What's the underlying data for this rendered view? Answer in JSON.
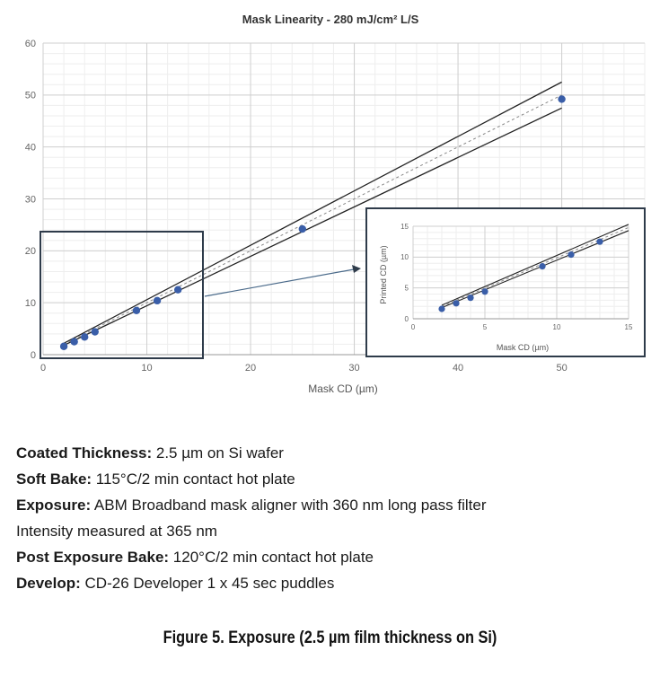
{
  "chart_data": [
    {
      "type": "scatter",
      "title": "Mask Linearity - 280 mJ/cm² L/S",
      "xlabel": "Mask CD (µm)",
      "ylabel": "",
      "xlim": [
        0,
        58
      ],
      "ylim": [
        0,
        60
      ],
      "xticks": [
        0,
        10,
        20,
        30,
        40,
        50
      ],
      "yticks": [
        0,
        10,
        20,
        30,
        40,
        50,
        60
      ],
      "grid": true,
      "x": [
        2,
        3,
        4,
        5,
        9,
        11,
        13,
        25,
        50
      ],
      "y": [
        1.6,
        2.5,
        3.4,
        4.4,
        8.5,
        10.4,
        12.5,
        24.2,
        49.2
      ],
      "reference_lines": [
        {
          "style": "solid",
          "x": [
            2,
            50
          ],
          "y": [
            2.2,
            52.5
          ]
        },
        {
          "style": "solid",
          "x": [
            2,
            50
          ],
          "y": [
            1.8,
            47.5
          ]
        },
        {
          "style": "dashed",
          "x": [
            2,
            50
          ],
          "y": [
            2.0,
            50.0
          ]
        }
      ],
      "point_color": "#3a5ea8",
      "line_color": "#222222"
    },
    {
      "type": "scatter",
      "title": "",
      "xlabel": "Mask CD (µm)",
      "ylabel": "Printed CD (µm)",
      "xlim": [
        0,
        15
      ],
      "ylim": [
        0,
        15
      ],
      "xticks": [
        0,
        5,
        10,
        15
      ],
      "yticks": [
        0,
        5,
        10,
        15
      ],
      "grid": true,
      "x": [
        2,
        3,
        4,
        5,
        9,
        11,
        13
      ],
      "y": [
        1.6,
        2.5,
        3.4,
        4.4,
        8.5,
        10.4,
        12.5
      ],
      "reference_lines": [
        {
          "style": "solid",
          "x": [
            2,
            15
          ],
          "y": [
            2.2,
            15.3
          ]
        },
        {
          "style": "solid",
          "x": [
            2,
            15
          ],
          "y": [
            1.8,
            14.3
          ]
        },
        {
          "style": "dashed",
          "x": [
            2,
            15
          ],
          "y": [
            2.0,
            14.8
          ]
        }
      ],
      "point_color": "#3a5ea8",
      "line_color": "#222222"
    }
  ],
  "conditions": [
    {
      "label": "Coated Thickness:",
      "value": " 2.5 µm on Si wafer"
    },
    {
      "label": "Soft Bake:",
      "value": " 115°C/2 min contact hot plate"
    },
    {
      "label": "Exposure:",
      "value": " ABM Broadband mask aligner with 360 nm long pass filter"
    },
    {
      "label": "",
      "value": "Intensity measured at 365 nm"
    },
    {
      "label": "Post Exposure Bake:",
      "value": " 120°C/2 min contact hot plate"
    },
    {
      "label": "Develop:",
      "value": " CD-26 Developer 1 x 45 sec puddles"
    }
  ],
  "caption": "Figure 5. Exposure (2.5 µm film thickness on Si)"
}
